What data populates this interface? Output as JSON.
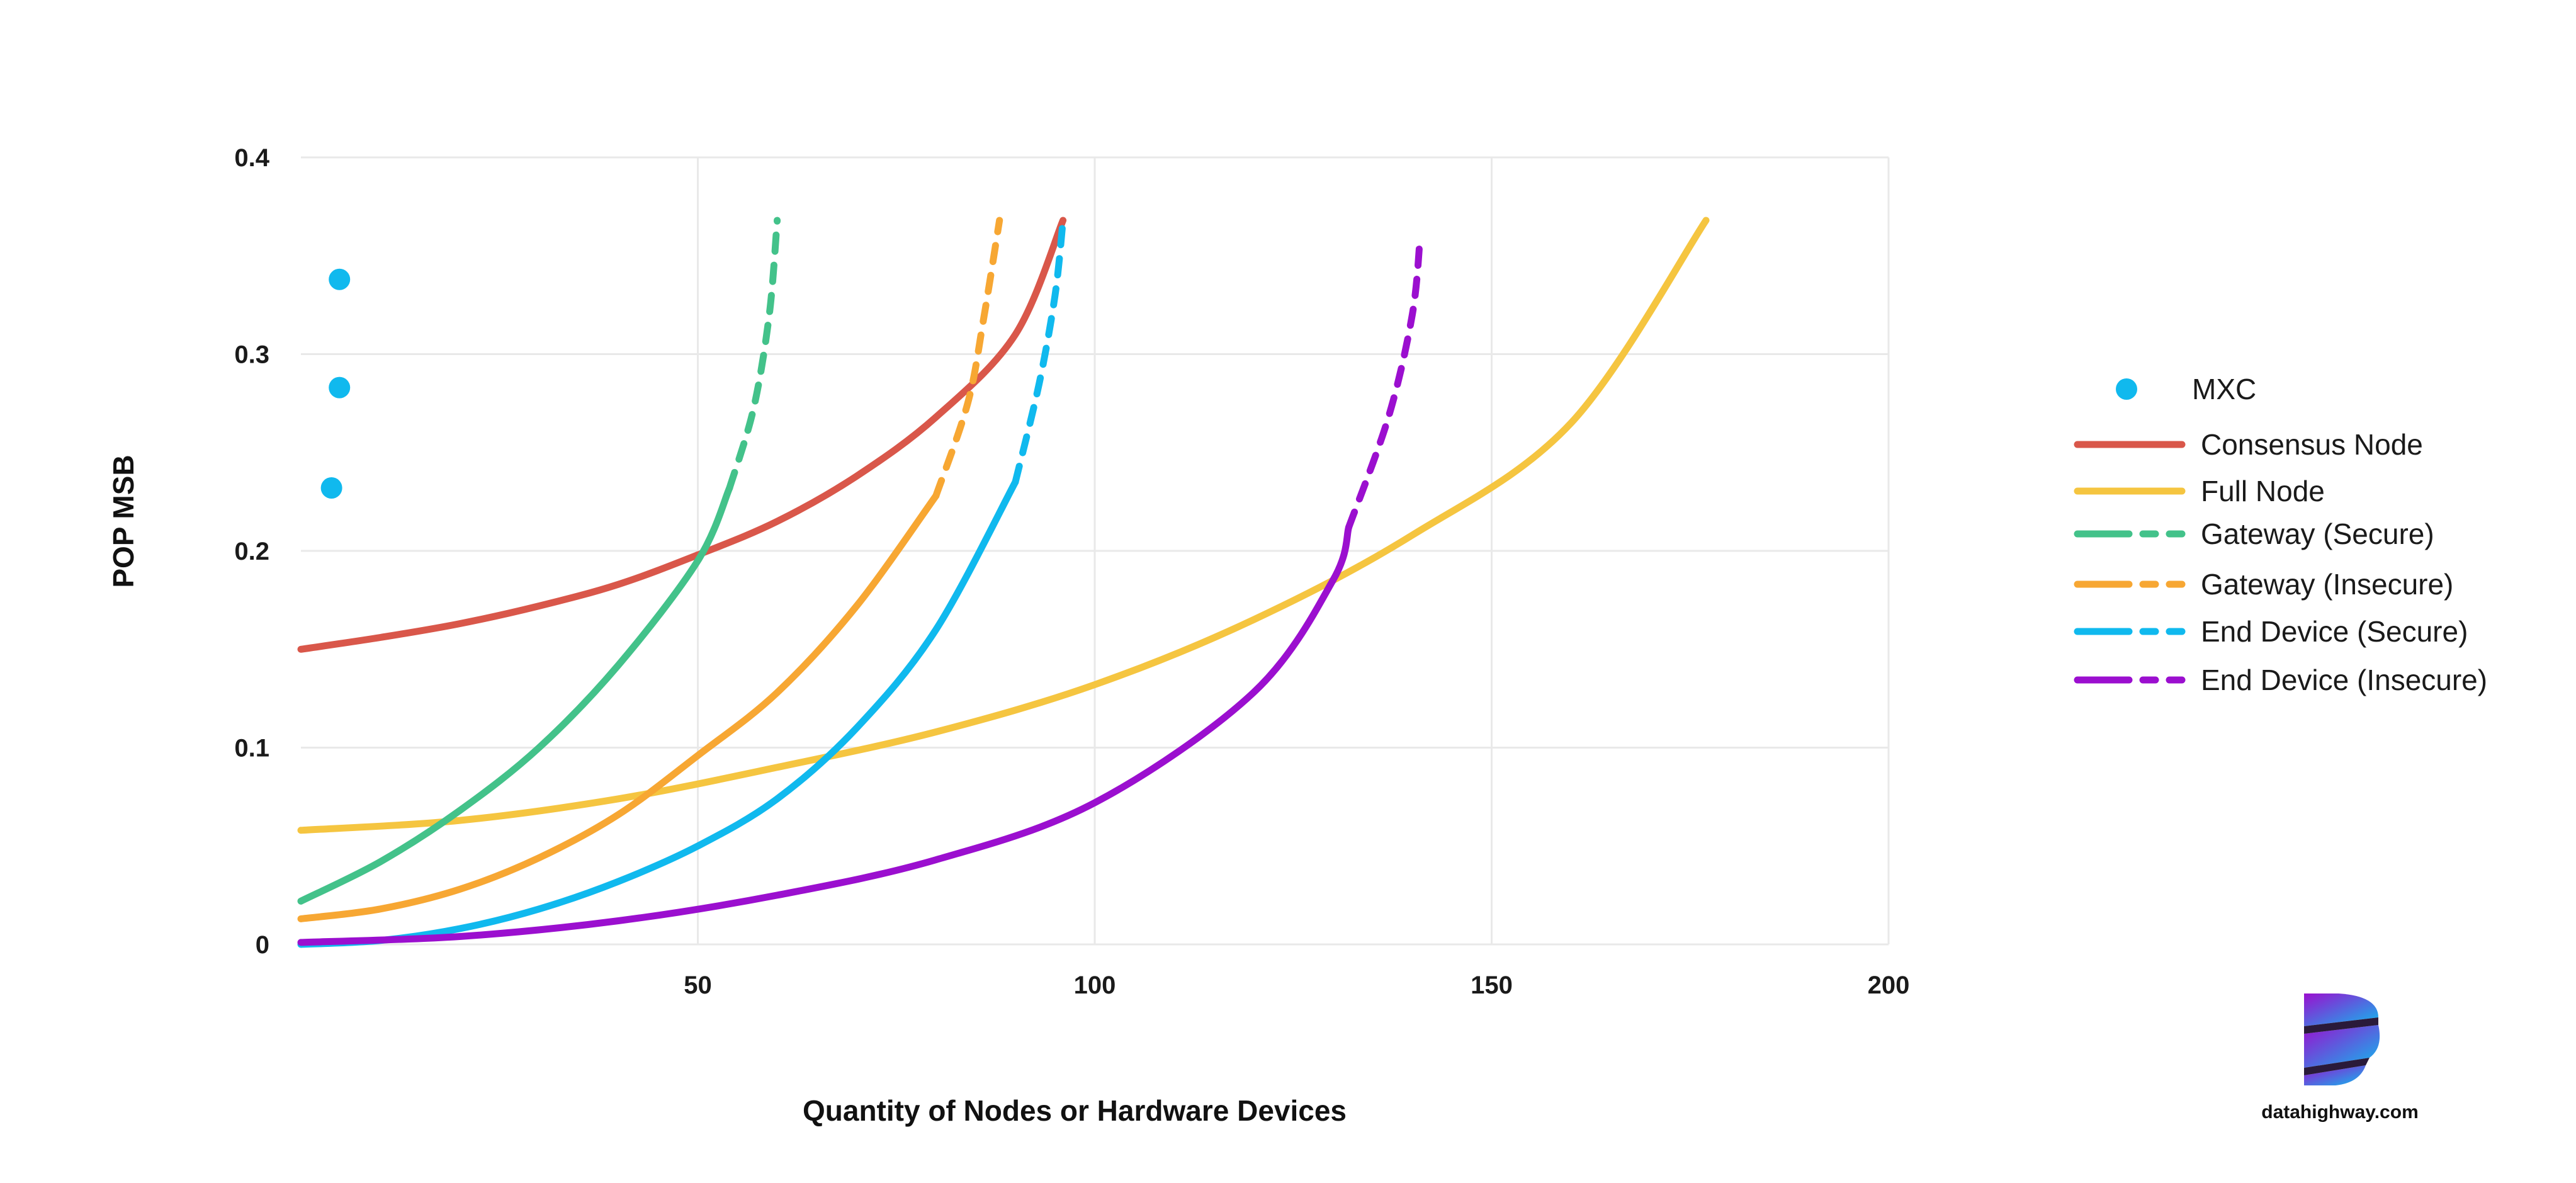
{
  "chart_data": {
    "type": "line",
    "xlabel": "Quantity of Nodes or Hardware Devices",
    "ylabel": "POP MSB",
    "xlim": [
      0,
      200
    ],
    "ylim": [
      0,
      0.4
    ],
    "x_ticks": [
      "50",
      "100",
      "150",
      "200"
    ],
    "y_ticks": [
      "0",
      "0.1",
      "0.2",
      "0.3",
      "0.4"
    ],
    "grid": true,
    "legend_position": "right",
    "points": {
      "name": "MXC",
      "color": "#10b9ee",
      "points": [
        [
          2,
          0.338
        ],
        [
          2,
          0.283
        ],
        [
          1,
          0.232
        ]
      ]
    },
    "series": [
      {
        "name": "Consensus Node",
        "color": "#d9574a",
        "style": "solid",
        "points": [
          [
            0,
            0.15
          ],
          [
            10,
            0.156
          ],
          [
            20,
            0.163
          ],
          [
            30,
            0.172
          ],
          [
            40,
            0.183
          ],
          [
            50,
            0.198
          ],
          [
            60,
            0.215
          ],
          [
            70,
            0.238
          ],
          [
            80,
            0.268
          ],
          [
            90,
            0.31
          ],
          [
            96,
            0.368
          ]
        ]
      },
      {
        "name": "Full Node",
        "color": "#f5c540",
        "style": "solid",
        "points": [
          [
            0,
            0.058
          ],
          [
            20,
            0.063
          ],
          [
            40,
            0.074
          ],
          [
            60,
            0.09
          ],
          [
            80,
            0.108
          ],
          [
            100,
            0.132
          ],
          [
            120,
            0.165
          ],
          [
            140,
            0.208
          ],
          [
            160,
            0.265
          ],
          [
            177,
            0.368
          ]
        ]
      },
      {
        "name": "Gateway (Secure)",
        "color": "#43c28a",
        "style": "solid-dashed",
        "dash_from_x": 54,
        "points": [
          [
            0,
            0.022
          ],
          [
            10,
            0.042
          ],
          [
            20,
            0.068
          ],
          [
            30,
            0.1
          ],
          [
            40,
            0.142
          ],
          [
            50,
            0.195
          ],
          [
            54,
            0.232
          ],
          [
            57,
            0.272
          ],
          [
            59,
            0.32
          ],
          [
            60,
            0.368
          ]
        ]
      },
      {
        "name": "Gateway (Insecure)",
        "color": "#f7a733",
        "style": "solid-dashed",
        "dash_from_x": 80,
        "points": [
          [
            0,
            0.013
          ],
          [
            10,
            0.018
          ],
          [
            20,
            0.028
          ],
          [
            30,
            0.044
          ],
          [
            40,
            0.066
          ],
          [
            50,
            0.096
          ],
          [
            60,
            0.128
          ],
          [
            70,
            0.172
          ],
          [
            80,
            0.228
          ],
          [
            84,
            0.275
          ],
          [
            86,
            0.318
          ],
          [
            88,
            0.368
          ]
        ]
      },
      {
        "name": "End Device (Secure)",
        "color": "#10b9ee",
        "style": "solid-dashed",
        "dash_from_x": 90,
        "points": [
          [
            0,
            0.0
          ],
          [
            10,
            0.002
          ],
          [
            20,
            0.008
          ],
          [
            30,
            0.018
          ],
          [
            40,
            0.032
          ],
          [
            50,
            0.05
          ],
          [
            60,
            0.074
          ],
          [
            70,
            0.11
          ],
          [
            80,
            0.16
          ],
          [
            90,
            0.235
          ],
          [
            93,
            0.285
          ],
          [
            95,
            0.33
          ],
          [
            96,
            0.368
          ]
        ]
      },
      {
        "name": "End Device (Insecure)",
        "color": "#9b0fcf",
        "style": "solid-dashed",
        "dash_from_x": 132,
        "points": [
          [
            0,
            0.001
          ],
          [
            20,
            0.004
          ],
          [
            40,
            0.012
          ],
          [
            60,
            0.025
          ],
          [
            80,
            0.043
          ],
          [
            100,
            0.072
          ],
          [
            120,
            0.128
          ],
          [
            130,
            0.185
          ],
          [
            132,
            0.212
          ],
          [
            137,
            0.268
          ],
          [
            140,
            0.32
          ],
          [
            141,
            0.36
          ]
        ]
      }
    ]
  },
  "brand": {
    "text": "datahighway.com",
    "logo_color_top": "#9b0fcf",
    "logo_color_bottom": "#10b9ee"
  }
}
